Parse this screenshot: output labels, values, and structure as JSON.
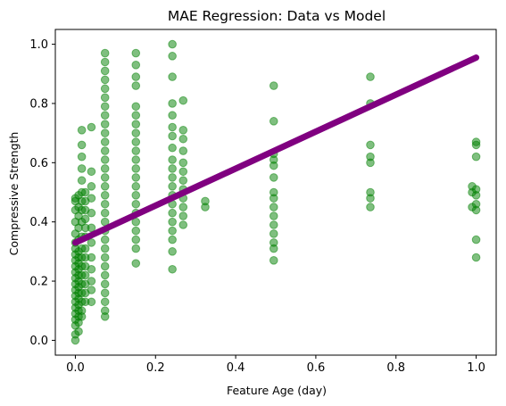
{
  "chart_data": {
    "type": "scatter",
    "title": "MAE Regression: Data vs Model",
    "xlabel": "Feature Age (day)",
    "ylabel": "Compressive Strength",
    "xlim": [
      -0.05,
      1.05
    ],
    "ylim": [
      -0.05,
      1.05
    ],
    "xticks": [
      0.0,
      0.2,
      0.4,
      0.6,
      0.8,
      1.0
    ],
    "xtick_labels": [
      "0.0",
      "0.2",
      "0.4",
      "0.6",
      "0.8",
      "1.0"
    ],
    "yticks": [
      0.0,
      0.2,
      0.4,
      0.6,
      0.8,
      1.0
    ],
    "ytick_labels": [
      "0.0",
      "0.2",
      "0.4",
      "0.6",
      "0.8",
      "1.0"
    ],
    "grid": false,
    "colors": {
      "data": "#008000",
      "model": "#800080"
    },
    "series": [
      {
        "kind": "scatter",
        "x_groups": [
          {
            "x": 0.0,
            "y": [
              0.0,
              0.02,
              0.05,
              0.07,
              0.09,
              0.11,
              0.13,
              0.15,
              0.17,
              0.19,
              0.21,
              0.23,
              0.25,
              0.27,
              0.29,
              0.31,
              0.33,
              0.36,
              0.4,
              0.44,
              0.47,
              0.48
            ]
          },
          {
            "x": 0.008,
            "y": [
              0.03,
              0.06,
              0.08,
              0.1,
              0.12,
              0.14,
              0.16,
              0.18,
              0.2,
              0.22,
              0.24,
              0.26,
              0.28,
              0.3,
              0.34,
              0.38,
              0.42,
              0.45,
              0.49
            ]
          },
          {
            "x": 0.016,
            "y": [
              0.08,
              0.1,
              0.13,
              0.16,
              0.19,
              0.22,
              0.25,
              0.28,
              0.31,
              0.35,
              0.4,
              0.44,
              0.47,
              0.5,
              0.54,
              0.58,
              0.62,
              0.66,
              0.71
            ]
          },
          {
            "x": 0.025,
            "y": [
              0.13,
              0.16,
              0.19,
              0.22,
              0.25,
              0.28,
              0.31,
              0.35,
              0.38,
              0.41,
              0.44,
              0.47,
              0.5
            ]
          },
          {
            "x": 0.04,
            "y": [
              0.13,
              0.17,
              0.2,
              0.24,
              0.28,
              0.33,
              0.38,
              0.43,
              0.48,
              0.52,
              0.57,
              0.72
            ]
          },
          {
            "x": 0.074,
            "y": [
              0.08,
              0.1,
              0.13,
              0.16,
              0.19,
              0.22,
              0.25,
              0.28,
              0.31,
              0.34,
              0.37,
              0.4,
              0.43,
              0.46,
              0.49,
              0.52,
              0.55,
              0.58,
              0.61,
              0.64,
              0.67,
              0.7,
              0.73,
              0.76,
              0.79,
              0.82,
              0.85,
              0.88,
              0.91,
              0.94,
              0.97
            ]
          },
          {
            "x": 0.151,
            "y": [
              0.26,
              0.31,
              0.34,
              0.37,
              0.4,
              0.43,
              0.46,
              0.49,
              0.52,
              0.55,
              0.58,
              0.61,
              0.64,
              0.67,
              0.7,
              0.73,
              0.76,
              0.79,
              0.86,
              0.89,
              0.93,
              0.97
            ]
          },
          {
            "x": 0.242,
            "y": [
              0.24,
              0.3,
              0.34,
              0.37,
              0.4,
              0.43,
              0.46,
              0.49,
              0.52,
              0.55,
              0.58,
              0.61,
              0.65,
              0.69,
              0.72,
              0.76,
              0.8,
              0.89,
              0.96,
              1.0
            ]
          },
          {
            "x": 0.269,
            "y": [
              0.39,
              0.42,
              0.45,
              0.48,
              0.51,
              0.54,
              0.57,
              0.6,
              0.64,
              0.68,
              0.71,
              0.81
            ]
          },
          {
            "x": 0.324,
            "y": [
              0.45,
              0.47
            ]
          },
          {
            "x": 0.495,
            "y": [
              0.27,
              0.31,
              0.33,
              0.36,
              0.39,
              0.42,
              0.45,
              0.48,
              0.5,
              0.55,
              0.59,
              0.61,
              0.63,
              0.74,
              0.86
            ]
          },
          {
            "x": 0.736,
            "y": [
              0.45,
              0.48,
              0.5,
              0.6,
              0.62,
              0.66,
              0.8,
              0.89
            ]
          },
          {
            "x": 0.99,
            "y": [
              0.45,
              0.5,
              0.52
            ]
          },
          {
            "x": 1.0,
            "y": [
              0.28,
              0.34,
              0.44,
              0.46,
              0.49,
              0.51,
              0.62,
              0.66,
              0.67
            ]
          }
        ]
      },
      {
        "kind": "line",
        "x": [
          0.0,
          1.0
        ],
        "y": [
          0.33,
          0.955
        ]
      }
    ]
  }
}
